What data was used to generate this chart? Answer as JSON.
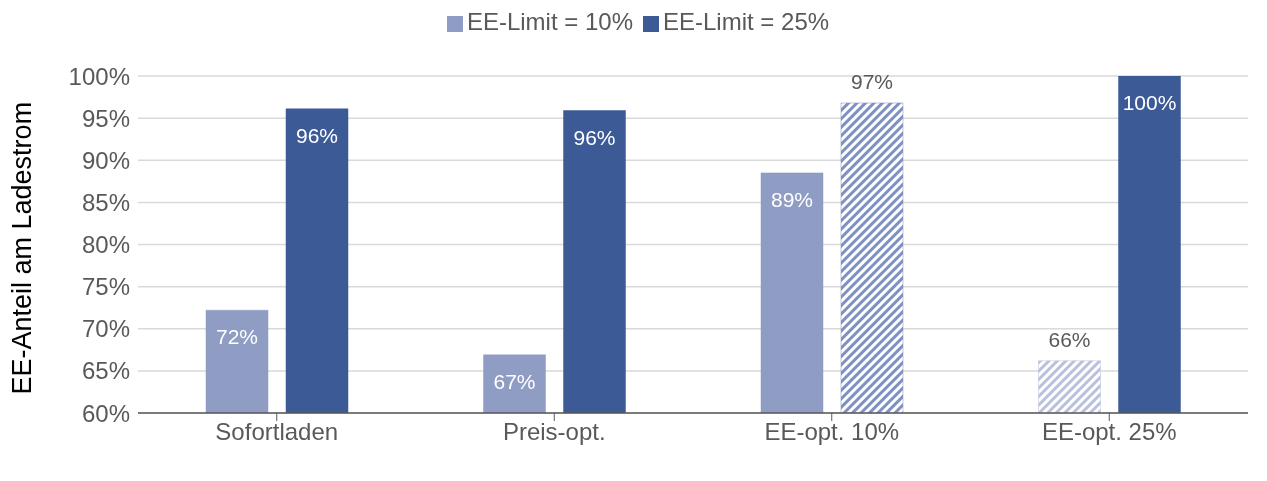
{
  "chart_data": {
    "type": "bar",
    "ylabel": "EE-Anteil  am Ladestrom",
    "categories": [
      "Sofortladen",
      "Preis-opt.",
      "EE-opt. 10%",
      "EE-opt. 25%"
    ],
    "series": [
      {
        "name": "EE-Limit = 10%",
        "color": "#8f9cc3",
        "colors": [
          "#8f9cc3",
          "#8f9cc3",
          "#8f9cc3",
          "#b9c1dc"
        ],
        "values": [
          72.2,
          66.9,
          88.5,
          66.2
        ],
        "value_labels": [
          "72%",
          "67%",
          "89%",
          "66%"
        ]
      },
      {
        "name": "EE-Limit = 25%",
        "color": "#3c5a96",
        "colors": [
          "#3c5a96",
          "#3c5a96",
          "#7f90c2",
          "#3c5a96"
        ],
        "values": [
          96.1,
          95.9,
          96.8,
          100
        ],
        "value_labels": [
          "96%",
          "96%",
          "97%",
          "100%"
        ]
      }
    ],
    "ylim": [
      60,
      100
    ],
    "yticks": [
      {
        "value": 60,
        "label": "60%"
      },
      {
        "value": 65,
        "label": "65%"
      },
      {
        "value": 70,
        "label": "70%"
      },
      {
        "value": 75,
        "label": "75%"
      },
      {
        "value": 80,
        "label": "80%"
      },
      {
        "value": 85,
        "label": "85%"
      },
      {
        "value": 90,
        "label": "90%"
      },
      {
        "value": 95,
        "label": "95%"
      },
      {
        "value": 100,
        "label": "100%"
      }
    ],
    "grid": "y",
    "legend": "top"
  }
}
